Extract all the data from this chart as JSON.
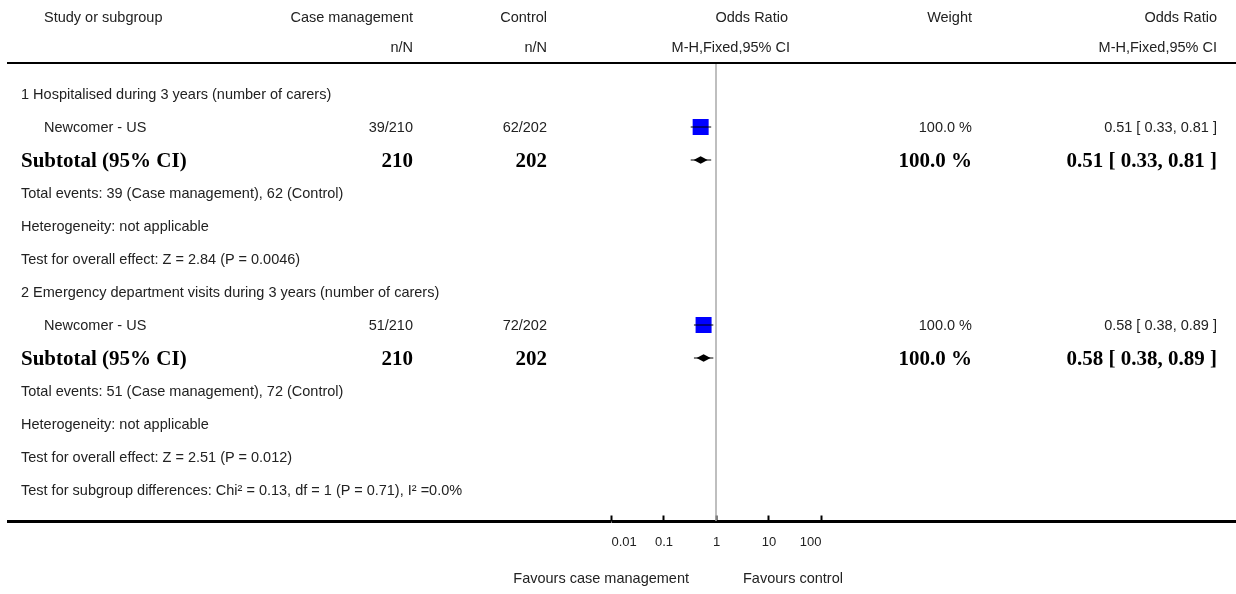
{
  "chart_data": {
    "type": "scatter",
    "orientation": "horizontal",
    "y_categories": [
      "1 Hospitalised during 3 years (number of carers)",
      "Newcomer - US",
      "Subtotal (95% CI)",
      "Total events: 39 (Case management), 62 (Control)",
      "Heterogeneity: not applicable",
      "Test for overall effect: Z = 2.84 (P = 0.0046)",
      "2 Emergency department visits during 3 years (number of carers)",
      "Newcomer - US",
      "Subtotal (95% CI)",
      "Total events: 51 (Case management), 72 (Control)",
      "Heterogeneity: not applicable",
      "Test for overall effect: Z = 2.51 (P = 0.012)",
      "Test for subgroup differences: Chi² = 0.13, df = 1 (P = 0.71), I² =0.0%"
    ],
    "series": [
      {
        "color": "#0000ff",
        "marker": "square",
        "values": [
          null,
          0.51,
          null,
          null,
          null,
          null,
          null,
          0.58,
          null,
          null,
          null,
          null,
          null
        ],
        "errors": [
          null,
          [
            0.33,
            0.81
          ],
          null,
          null,
          null,
          null,
          null,
          [
            0.38,
            0.89
          ],
          null,
          null,
          null,
          null,
          null
        ],
        "value_labels": [
          null,
          "0.51 [ 0.33, 0.81 ]",
          null,
          null,
          null,
          null,
          null,
          "0.58 [ 0.38, 0.89 ]",
          null,
          null,
          null,
          null,
          null
        ]
      },
      {
        "color": "#000000",
        "marker": "diamond",
        "values": [
          null,
          null,
          0.51,
          null,
          null,
          null,
          null,
          null,
          0.58,
          null,
          null,
          null,
          null
        ],
        "errors": [
          null,
          null,
          [
            0.33,
            0.81
          ],
          null,
          null,
          null,
          null,
          null,
          [
            0.38,
            0.89
          ],
          null,
          null,
          null,
          null
        ]
      }
    ],
    "xlim": [
      0.01,
      100
    ],
    "xticks": [
      0.01,
      0.1,
      1,
      10,
      100
    ],
    "log": "x",
    "grid": false,
    "legend": false,
    "ref_lines": [
      {
        "axis": "x",
        "value": 1,
        "color": "#aaaaaa"
      }
    ],
    "annotations": [
      "Study or subgroup",
      "Case management",
      "n/N",
      "Control",
      "n/N",
      "Odds Ratio",
      "M-H,Fixed,95% CI",
      "Weight",
      "Odds Ratio",
      "M-H,Fixed,95% CI",
      "39/210",
      "62/202",
      "100.0 %",
      "210",
      "202",
      "100.0 %",
      "51/210",
      "72/202",
      "100.0 %",
      "210",
      "202",
      "100.0 %",
      "Favours case management",
      "Favours control",
      "0.51 [ 0.33, 0.81 ]",
      "0.58 [ 0.38, 0.89 ]"
    ]
  }
}
